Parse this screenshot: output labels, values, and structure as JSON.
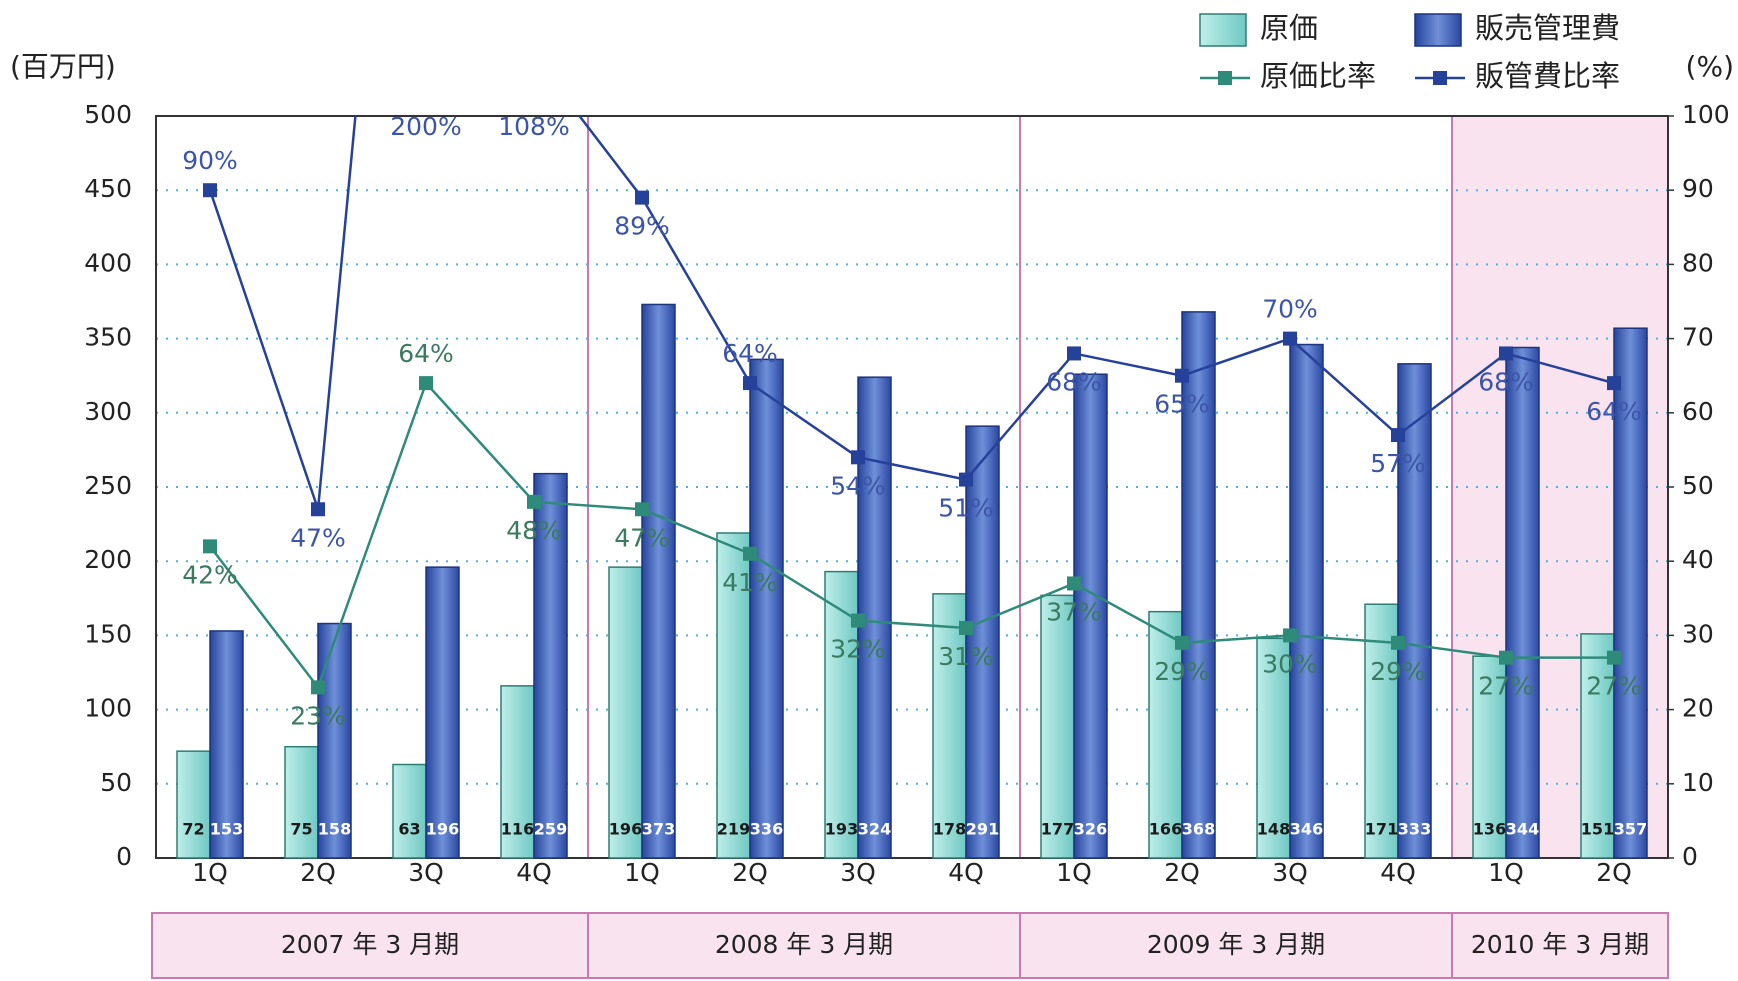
{
  "chart_data": {
    "type": "bar-line",
    "y_axis_label": "(百万円)",
    "y2_axis_label": "(%)",
    "groups": [
      {
        "name": "2007 年 3 月期",
        "categories": [
          "1Q",
          "2Q",
          "3Q",
          "4Q"
        ]
      },
      {
        "name": "2008 年 3 月期",
        "categories": [
          "1Q",
          "2Q",
          "3Q",
          "4Q"
        ]
      },
      {
        "name": "2009 年 3 月期",
        "categories": [
          "1Q",
          "2Q",
          "3Q",
          "4Q"
        ]
      },
      {
        "name": "2010 年 3 月期",
        "categories": [
          "1Q",
          "2Q"
        ]
      }
    ],
    "series": [
      {
        "name": "原価",
        "kind": "bar",
        "color": "#8fd8d3",
        "values": [
          72,
          75,
          63,
          116,
          196,
          219,
          193,
          178,
          177,
          166,
          148,
          171,
          136,
          151
        ]
      },
      {
        "name": "販売管理費",
        "kind": "bar",
        "color": "#3a5bb5",
        "values": [
          153,
          158,
          196,
          259,
          373,
          336,
          324,
          291,
          326,
          368,
          346,
          333,
          344,
          357
        ]
      },
      {
        "name": "原価比率",
        "kind": "line",
        "axis": "y2",
        "color": "#2e8b7a",
        "values": [
          42,
          23,
          64,
          48,
          47,
          41,
          32,
          31,
          37,
          29,
          30,
          29,
          27,
          27
        ],
        "value_labels": [
          "42%",
          "23%",
          "64%",
          "48%",
          "47%",
          "41%",
          "32%",
          "31%",
          "37%",
          "29%",
          "30%",
          "29%",
          "27%",
          "27%"
        ]
      },
      {
        "name": "販管費比率",
        "kind": "line",
        "axis": "y2",
        "color": "#26419a",
        "values": [
          90,
          47,
          200,
          108,
          89,
          64,
          54,
          51,
          68,
          65,
          70,
          57,
          68,
          64
        ],
        "value_labels": [
          "90%",
          "47%",
          "200%",
          "108%",
          "89%",
          "64%",
          "54%",
          "51%",
          "68%",
          "65%",
          "70%",
          "57%",
          "68%",
          "64%"
        ]
      }
    ],
    "ylim": [
      0,
      500
    ],
    "yticks": [
      0,
      50,
      100,
      150,
      200,
      250,
      300,
      350,
      400,
      450,
      500
    ],
    "y2lim": [
      0,
      100
    ],
    "y2ticks": [
      0,
      10,
      20,
      30,
      40,
      50,
      60,
      70,
      80,
      90,
      100
    ],
    "grid": true
  }
}
